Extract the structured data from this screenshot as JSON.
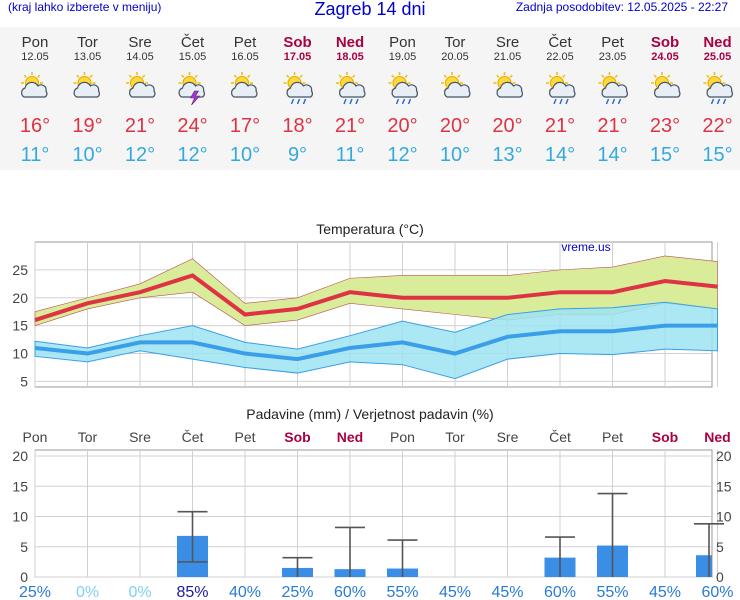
{
  "header": {
    "left_note": "(kraj lahko izberete v meniju)",
    "title": "Zagreb 14 dni",
    "updated": "Zadnja posodobitev: 12.05.2025 - 22:27"
  },
  "days": [
    {
      "name": "Pon",
      "date": "12.05",
      "weekend": false,
      "icon": "cloudy-sun-icon",
      "tmax": "16°",
      "tmin": "11°"
    },
    {
      "name": "Tor",
      "date": "13.05",
      "weekend": false,
      "icon": "cloudy-sun-icon",
      "tmax": "19°",
      "tmin": "10°"
    },
    {
      "name": "Sre",
      "date": "14.05",
      "weekend": false,
      "icon": "sun-cloud-icon",
      "tmax": "21°",
      "tmin": "12°"
    },
    {
      "name": "Čet",
      "date": "15.05",
      "weekend": false,
      "icon": "thunderstorm-icon",
      "tmax": "24°",
      "tmin": "12°"
    },
    {
      "name": "Pet",
      "date": "16.05",
      "weekend": false,
      "icon": "cloudy-sun-icon",
      "tmax": "17°",
      "tmin": "10°"
    },
    {
      "name": "Sob",
      "date": "17.05",
      "weekend": true,
      "icon": "sun-rain-icon",
      "tmax": "18°",
      "tmin": "9°"
    },
    {
      "name": "Ned",
      "date": "18.05",
      "weekend": true,
      "icon": "sun-rain-icon",
      "tmax": "21°",
      "tmin": "11°"
    },
    {
      "name": "Pon",
      "date": "19.05",
      "weekend": false,
      "icon": "sun-rain-icon",
      "tmax": "20°",
      "tmin": "12°"
    },
    {
      "name": "Tor",
      "date": "20.05",
      "weekend": false,
      "icon": "sun-cloud-icon",
      "tmax": "20°",
      "tmin": "10°"
    },
    {
      "name": "Sre",
      "date": "21.05",
      "weekend": false,
      "icon": "sun-cloud-icon",
      "tmax": "20°",
      "tmin": "13°"
    },
    {
      "name": "Čet",
      "date": "22.05",
      "weekend": false,
      "icon": "sun-rain-icon",
      "tmax": "21°",
      "tmin": "14°"
    },
    {
      "name": "Pet",
      "date": "23.05",
      "weekend": false,
      "icon": "sun-rain-icon",
      "tmax": "21°",
      "tmin": "14°"
    },
    {
      "name": "Sob",
      "date": "24.05",
      "weekend": true,
      "icon": "sun-cloud-icon",
      "tmax": "23°",
      "tmin": "15°"
    },
    {
      "name": "Ned",
      "date": "25.05",
      "weekend": true,
      "icon": "sun-rain-icon",
      "tmax": "22°",
      "tmin": "15°"
    }
  ],
  "colors": {
    "tmax": "#dd3344",
    "tmin": "#33aadd",
    "weekend": "#aa0044",
    "weekday": "#333333",
    "max_band": "#d8ec9a",
    "min_band": "#9ee4f2",
    "min_line": "#3a9ee8",
    "bar": "#3a8ee6",
    "prob_high": "#1a1aa0",
    "prob_mid": "#2a7ad8",
    "prob_low": "#7fd0f4"
  },
  "chart_data": [
    {
      "type": "line",
      "title": "Temperatura (°C)",
      "watermark": "vreme.us",
      "ylim": [
        4,
        30
      ],
      "yticks": [
        5,
        10,
        15,
        20,
        25
      ],
      "grid": true,
      "series": [
        {
          "role": "max",
          "values": [
            16,
            19,
            21,
            24,
            17,
            18,
            21,
            20,
            20,
            20,
            21,
            21,
            23,
            22
          ],
          "low": [
            15,
            18,
            20,
            21,
            15,
            16,
            19,
            18,
            17,
            16,
            17,
            17,
            19,
            18
          ],
          "high": [
            17.5,
            20,
            22.5,
            27,
            19,
            20,
            23.5,
            24,
            24,
            24,
            25,
            25.5,
            27.5,
            26.5
          ]
        },
        {
          "role": "min",
          "values": [
            11,
            10,
            12,
            12,
            10,
            9,
            11,
            12,
            10,
            13,
            14,
            14,
            15,
            15
          ],
          "low": [
            9.5,
            8.5,
            10.5,
            9,
            7.5,
            6.5,
            8.5,
            8,
            5.5,
            9,
            10,
            9.8,
            10.8,
            10.5
          ],
          "high": [
            12.2,
            11,
            13.2,
            15,
            12,
            10.8,
            13.2,
            15.8,
            13.8,
            17,
            18,
            18.2,
            19.2,
            18
          ]
        }
      ]
    },
    {
      "type": "bar",
      "title": "Padavine (mm) / Verjetnost padavin (%)",
      "categories": [
        "Pon",
        "Tor",
        "Sre",
        "Čet",
        "Pet",
        "Sob",
        "Ned",
        "Pon",
        "Tor",
        "Sre",
        "Čet",
        "Pet",
        "Sob",
        "Ned"
      ],
      "ylim": [
        0,
        21
      ],
      "yticks": [
        0,
        5,
        10,
        15,
        20
      ],
      "values": [
        0,
        0,
        0,
        6.8,
        0,
        1.5,
        1.3,
        1.4,
        0,
        0,
        3.2,
        5.2,
        0,
        3.6
      ],
      "err_low": [
        0,
        0,
        0,
        2.5,
        0,
        0,
        0,
        0,
        0,
        0,
        0,
        0,
        0,
        0
      ],
      "err_high": [
        0,
        0,
        0,
        10.8,
        0,
        3.2,
        8.2,
        6.1,
        0,
        0,
        6.6,
        13.8,
        0,
        8.8
      ],
      "probability": [
        "25%",
        "0%",
        "0%",
        "85%",
        "40%",
        "25%",
        "60%",
        "55%",
        "45%",
        "45%",
        "60%",
        "55%",
        "45%",
        "60%"
      ]
    }
  ]
}
